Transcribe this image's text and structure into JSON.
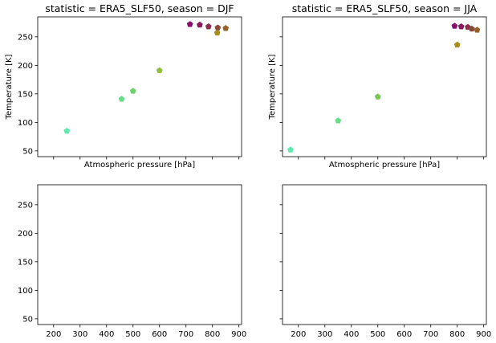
{
  "chart_data": [
    {
      "type": "scatter",
      "title": "statistic = ERA5_SLF50, season = DJF",
      "xlabel": "Atmospheric pressure [hPa]",
      "ylabel": "Temperature [K]",
      "xlim": [
        140,
        910
      ],
      "ylim": [
        40,
        285
      ],
      "xticks": [
        200,
        300,
        400,
        500,
        600,
        700,
        800,
        900
      ],
      "yticks": [
        50,
        100,
        150,
        200,
        250
      ],
      "show_xticklabels": false,
      "show_yticklabels": true,
      "marker": "pentagon",
      "points": [
        {
          "x": 250,
          "y": 85,
          "color": "#5ee8b0"
        },
        {
          "x": 457,
          "y": 141,
          "color": "#66dd88"
        },
        {
          "x": 500,
          "y": 155,
          "color": "#70d070"
        },
        {
          "x": 600,
          "y": 191,
          "color": "#8fbf3f"
        },
        {
          "x": 715,
          "y": 272,
          "color": "#880e6e"
        },
        {
          "x": 752,
          "y": 271,
          "color": "#8b1760"
        },
        {
          "x": 785,
          "y": 268,
          "color": "#8a2e4c"
        },
        {
          "x": 820,
          "y": 266,
          "color": "#8a4a3a"
        },
        {
          "x": 818,
          "y": 257,
          "color": "#a98d1a"
        },
        {
          "x": 850,
          "y": 265,
          "color": "#946228"
        }
      ]
    },
    {
      "type": "scatter",
      "title": "statistic = ERA5_SLF50, season = JJA",
      "xlabel": "Atmospheric pressure [hPa]",
      "ylabel": "Temperature [K]",
      "xlim": [
        140,
        910
      ],
      "ylim": [
        40,
        285
      ],
      "xticks": [
        200,
        300,
        400,
        500,
        600,
        700,
        800,
        900
      ],
      "yticks": [
        50,
        100,
        150,
        200,
        250
      ],
      "show_xticklabels": false,
      "show_yticklabels": false,
      "marker": "pentagon",
      "points": [
        {
          "x": 170,
          "y": 52,
          "color": "#5ee8b0"
        },
        {
          "x": 350,
          "y": 103,
          "color": "#66dd88"
        },
        {
          "x": 500,
          "y": 145,
          "color": "#78c854"
        },
        {
          "x": 800,
          "y": 236,
          "color": "#a98d1a"
        },
        {
          "x": 790,
          "y": 269,
          "color": "#880e6e"
        },
        {
          "x": 815,
          "y": 268,
          "color": "#8b1760"
        },
        {
          "x": 840,
          "y": 267,
          "color": "#8a2e4c"
        },
        {
          "x": 855,
          "y": 264,
          "color": "#8a4a3a"
        },
        {
          "x": 875,
          "y": 262,
          "color": "#946228"
        }
      ]
    },
    {
      "type": "scatter",
      "title": "",
      "xlabel": "",
      "ylabel": "",
      "xlim": [
        140,
        910
      ],
      "ylim": [
        40,
        285
      ],
      "xticks": [
        200,
        300,
        400,
        500,
        600,
        700,
        800,
        900
      ],
      "yticks": [
        50,
        100,
        150,
        200,
        250
      ],
      "show_xticklabels": true,
      "show_yticklabels": true,
      "marker": "pentagon",
      "points": []
    },
    {
      "type": "scatter",
      "title": "",
      "xlabel": "",
      "ylabel": "",
      "xlim": [
        140,
        910
      ],
      "ylim": [
        40,
        285
      ],
      "xticks": [
        200,
        300,
        400,
        500,
        600,
        700,
        800,
        900
      ],
      "yticks": [
        50,
        100,
        150,
        200,
        250
      ],
      "show_xticklabels": true,
      "show_yticklabels": false,
      "marker": "pentagon",
      "points": []
    }
  ]
}
